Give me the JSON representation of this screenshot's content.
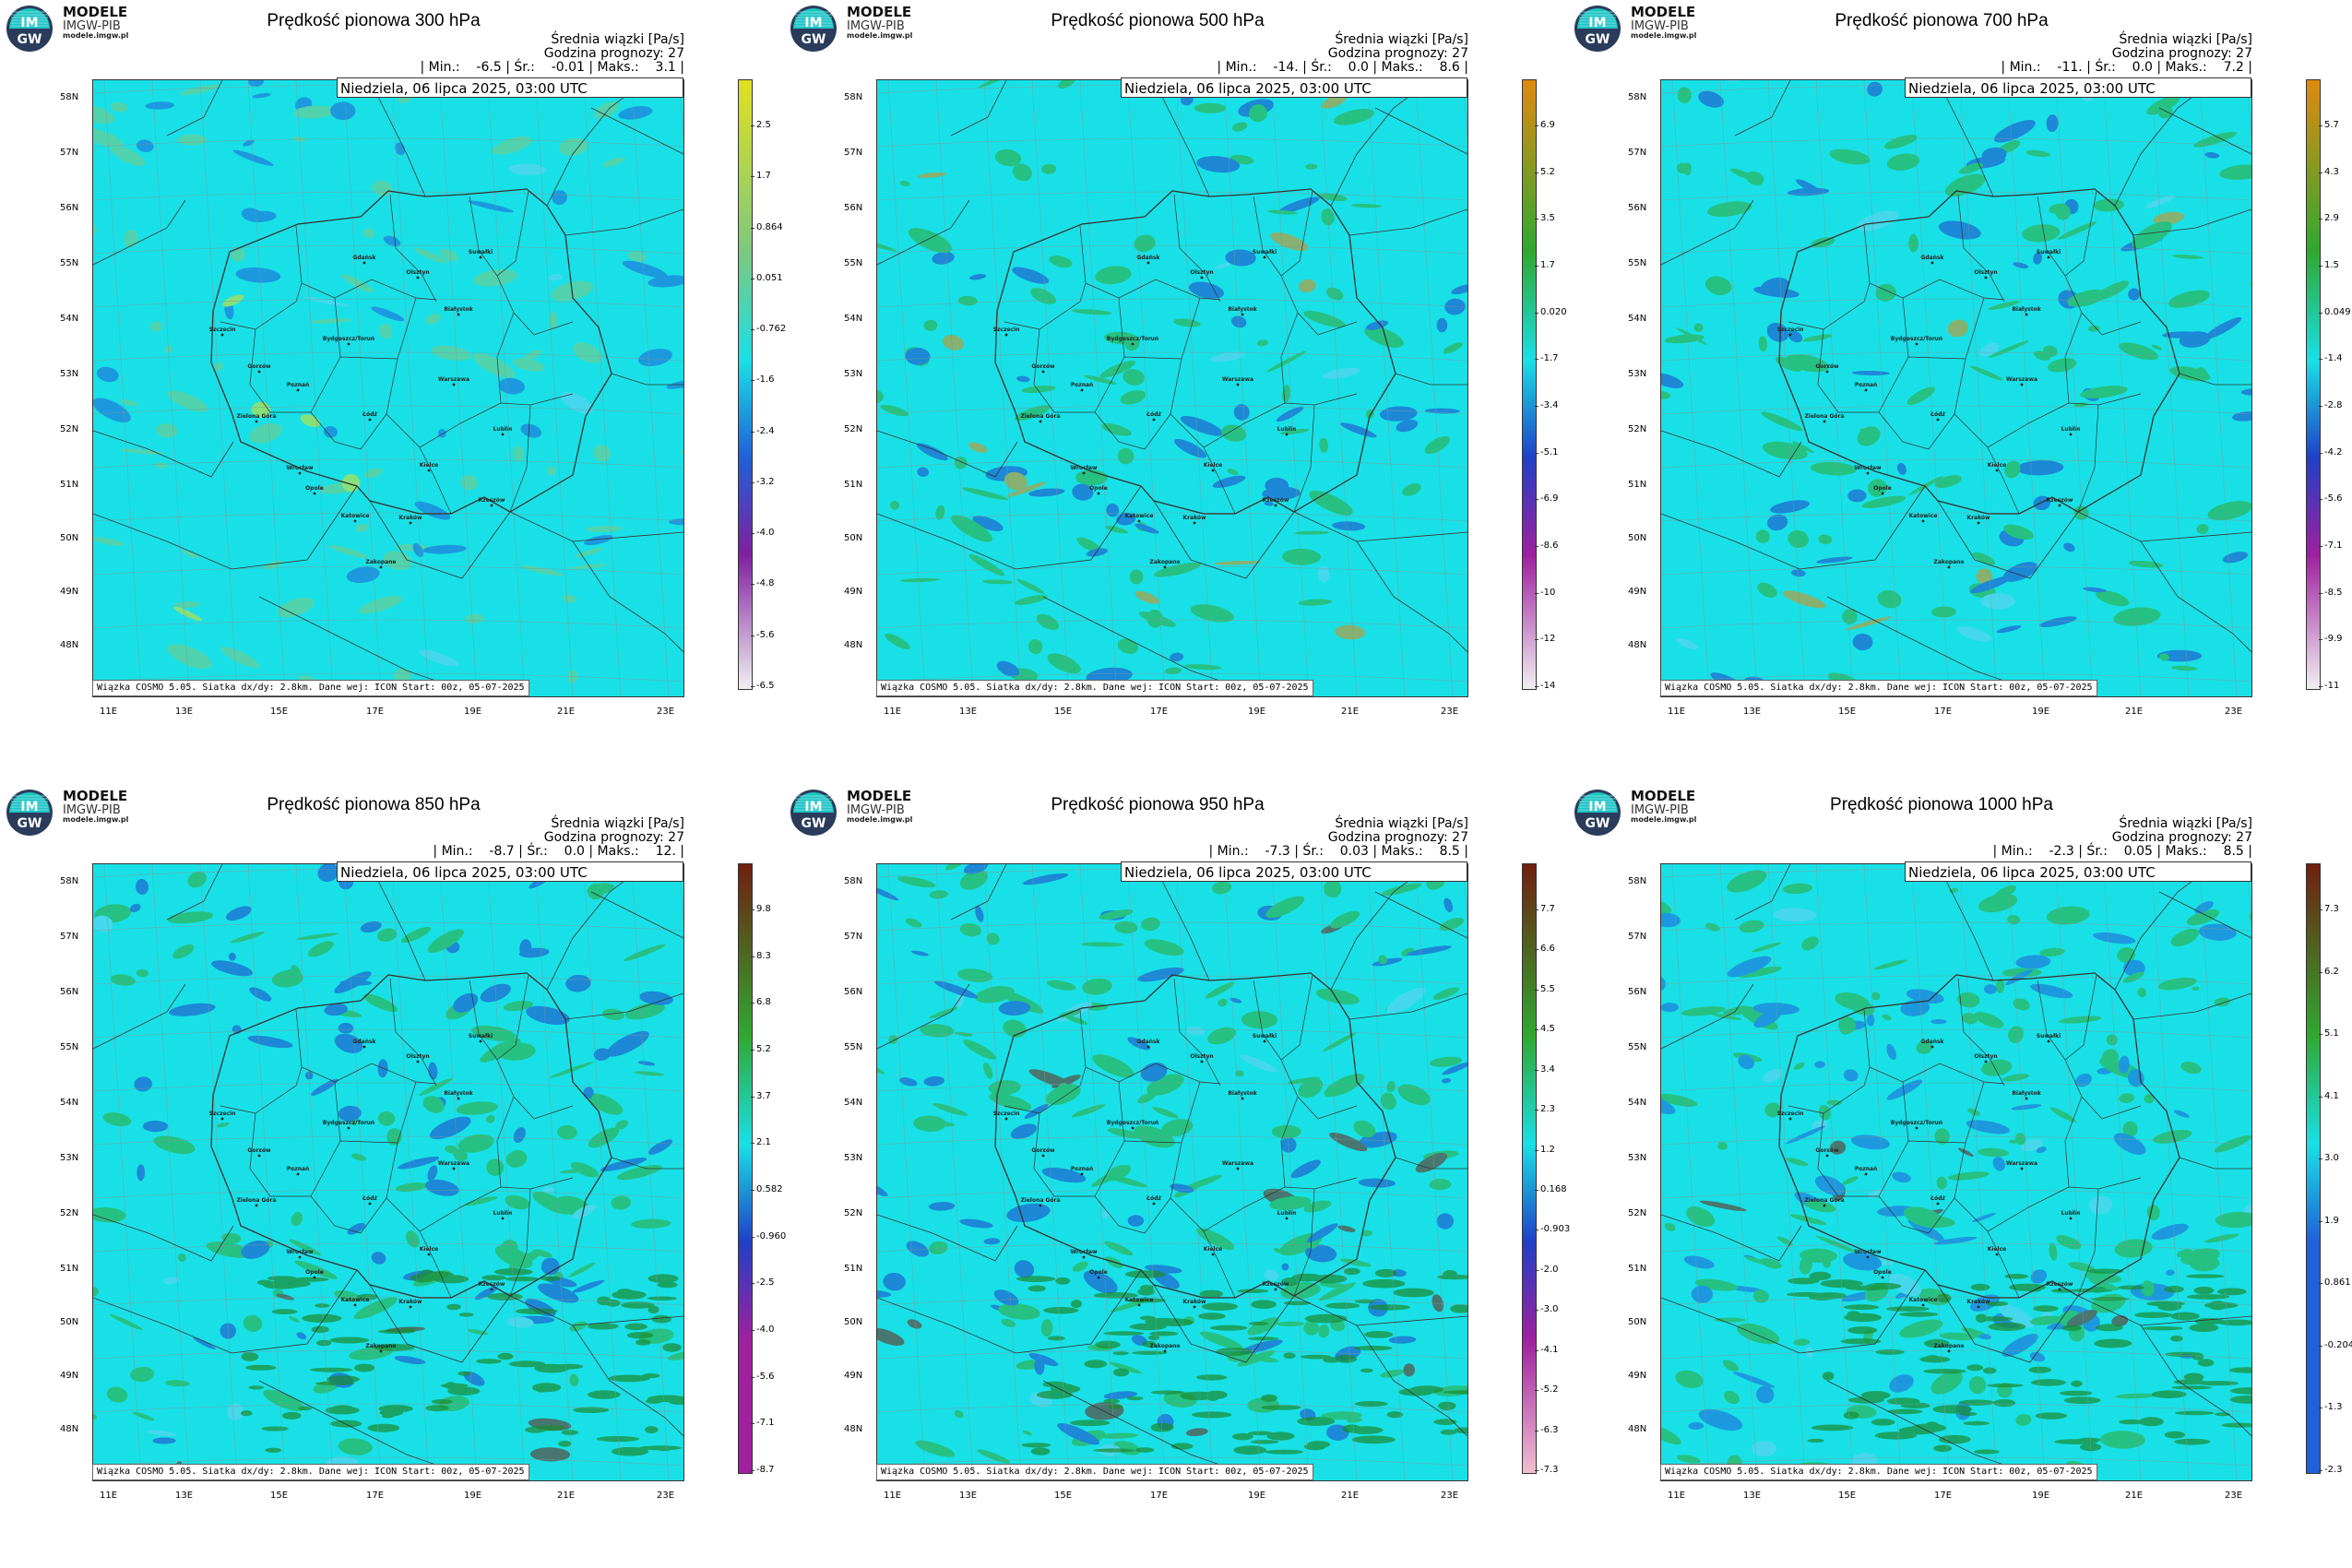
{
  "logo": {
    "mark_top": "IM",
    "mark_bottom": "GW",
    "brand_line1": "MODELE",
    "brand_line2": "IMGW-PIB",
    "brand_line3": "modele.imgw.pl"
  },
  "common": {
    "mean_label": "Średnia wiązki [Pa/s]",
    "forecast_hour_label": "Godzina prognozy: 27",
    "date": "Niedziela, 06 lipca 2025, 03:00 UTC",
    "footer": "Wiązka COSMO 5.05. Siatka dx/dy: 2.8km. Dane wej: ICON Start: 00z, 05-07-2025",
    "lat_labels": [
      "58N",
      "57N",
      "56N",
      "55N",
      "54N",
      "53N",
      "52N",
      "51N",
      "50N",
      "49N",
      "48N"
    ],
    "lon_labels": [
      "11E",
      "13E",
      "15E",
      "17E",
      "19E",
      "21E",
      "23E"
    ],
    "cities": [
      "Gdańsk",
      "Suwałki",
      "Olsztyn",
      "Białystok",
      "Szczecin",
      "Bydgoszcz/Toruń",
      "Gorzów",
      "Poznań",
      "Warszawa",
      "Zielona Góra",
      "Łódź",
      "Lublin",
      "Wrocław",
      "Kielce",
      "Opole",
      "Rzeszów",
      "Katowice",
      "Kraków",
      "Zakopane"
    ]
  },
  "panels": [
    {
      "title": "Prędkość pionowa 300 hPa",
      "stats": "| Min.:    -6.5 | Śr.:    -0.01 | Maks.:    3.1 |",
      "ticks": [
        "2.5",
        "1.7",
        "0.864",
        "0.051",
        "-0.762",
        "-1.6",
        "-2.4",
        "-3.2",
        "-4.0",
        "-4.8",
        "-5.6",
        "-6.5"
      ],
      "colors": {
        "top": "#e0e020",
        "mid_high": "#7ec87e",
        "mid": "#19e0e6",
        "mid_low": "#2060d8",
        "low": "#8020a0",
        "bottom": "#f0f0f0"
      }
    },
    {
      "title": "Prędkość pionowa 500 hPa",
      "stats": "| Min.:    -14. | Śr.:    0.0 | Maks.:    8.6 |",
      "ticks": [
        "6.9",
        "5.2",
        "3.5",
        "1.7",
        "0.020",
        "-1.7",
        "-3.4",
        "-5.1",
        "-6.9",
        "-8.6",
        "-10",
        "-12",
        "-14"
      ],
      "colors": {
        "top": "#e08a10",
        "mid_high": "#30a830",
        "mid": "#19e0e6",
        "mid_low": "#2040c8",
        "low": "#a020a0",
        "bottom": "#f0f0f0"
      }
    },
    {
      "title": "Prędkość pionowa 700 hPa",
      "stats": "| Min.:    -11. | Śr.:    0.0 | Maks.:    7.2 |",
      "ticks": [
        "5.7",
        "4.3",
        "2.9",
        "1.5",
        "0.049",
        "-1.4",
        "-2.8",
        "-4.2",
        "-5.6",
        "-7.1",
        "-8.5",
        "-9.9",
        "-11"
      ],
      "colors": {
        "top": "#e08a10",
        "mid_high": "#30a830",
        "mid": "#19e0e6",
        "mid_low": "#2040c8",
        "low": "#a020a0",
        "bottom": "#f0f0f0"
      }
    },
    {
      "title": "Prędkość pionowa 850 hPa",
      "stats": "| Min.:    -8.7 | Śr.:    0.0 | Maks.:    12. |",
      "ticks": [
        "9.8",
        "8.3",
        "6.8",
        "5.2",
        "3.7",
        "2.1",
        "0.582",
        "-0.960",
        "-2.5",
        "-4.0",
        "-5.6",
        "-7.1",
        "-8.7"
      ],
      "colors": {
        "top": "#702010",
        "mid_high": "#30a830",
        "mid": "#19e0e6",
        "mid_low": "#2040c8",
        "low": "#a020a0",
        "bottom": "#a020a0"
      }
    },
    {
      "title": "Prędkość pionowa 950 hPa",
      "stats": "| Min.:    -7.3 | Śr.:    0.03 | Maks.:    8.5 |",
      "ticks": [
        "7.7",
        "6.6",
        "5.5",
        "4.5",
        "3.4",
        "2.3",
        "1.2",
        "0.168",
        "-0.903",
        "-2.0",
        "-3.0",
        "-4.1",
        "-5.2",
        "-6.3",
        "-7.3"
      ],
      "colors": {
        "top": "#702010",
        "mid_high": "#30a830",
        "mid": "#19e0e6",
        "mid_low": "#2040c8",
        "low": "#a020a0",
        "bottom": "#f0c0d0"
      }
    },
    {
      "title": "Prędkość pionowa 1000 hPa",
      "stats": "| Min.:    -2.3 | Śr.:    0.05 | Maks.:    8.5 |",
      "ticks": [
        "7.3",
        "6.2",
        "5.1",
        "4.1",
        "3.0",
        "1.9",
        "0.861",
        "-0.204",
        "-1.3",
        "-2.3"
      ],
      "colors": {
        "top": "#702010",
        "mid_high": "#30a830",
        "mid": "#19e0e6",
        "mid_low": "#2060d8",
        "low": "#2060d8",
        "bottom": "#2060d8"
      }
    }
  ]
}
